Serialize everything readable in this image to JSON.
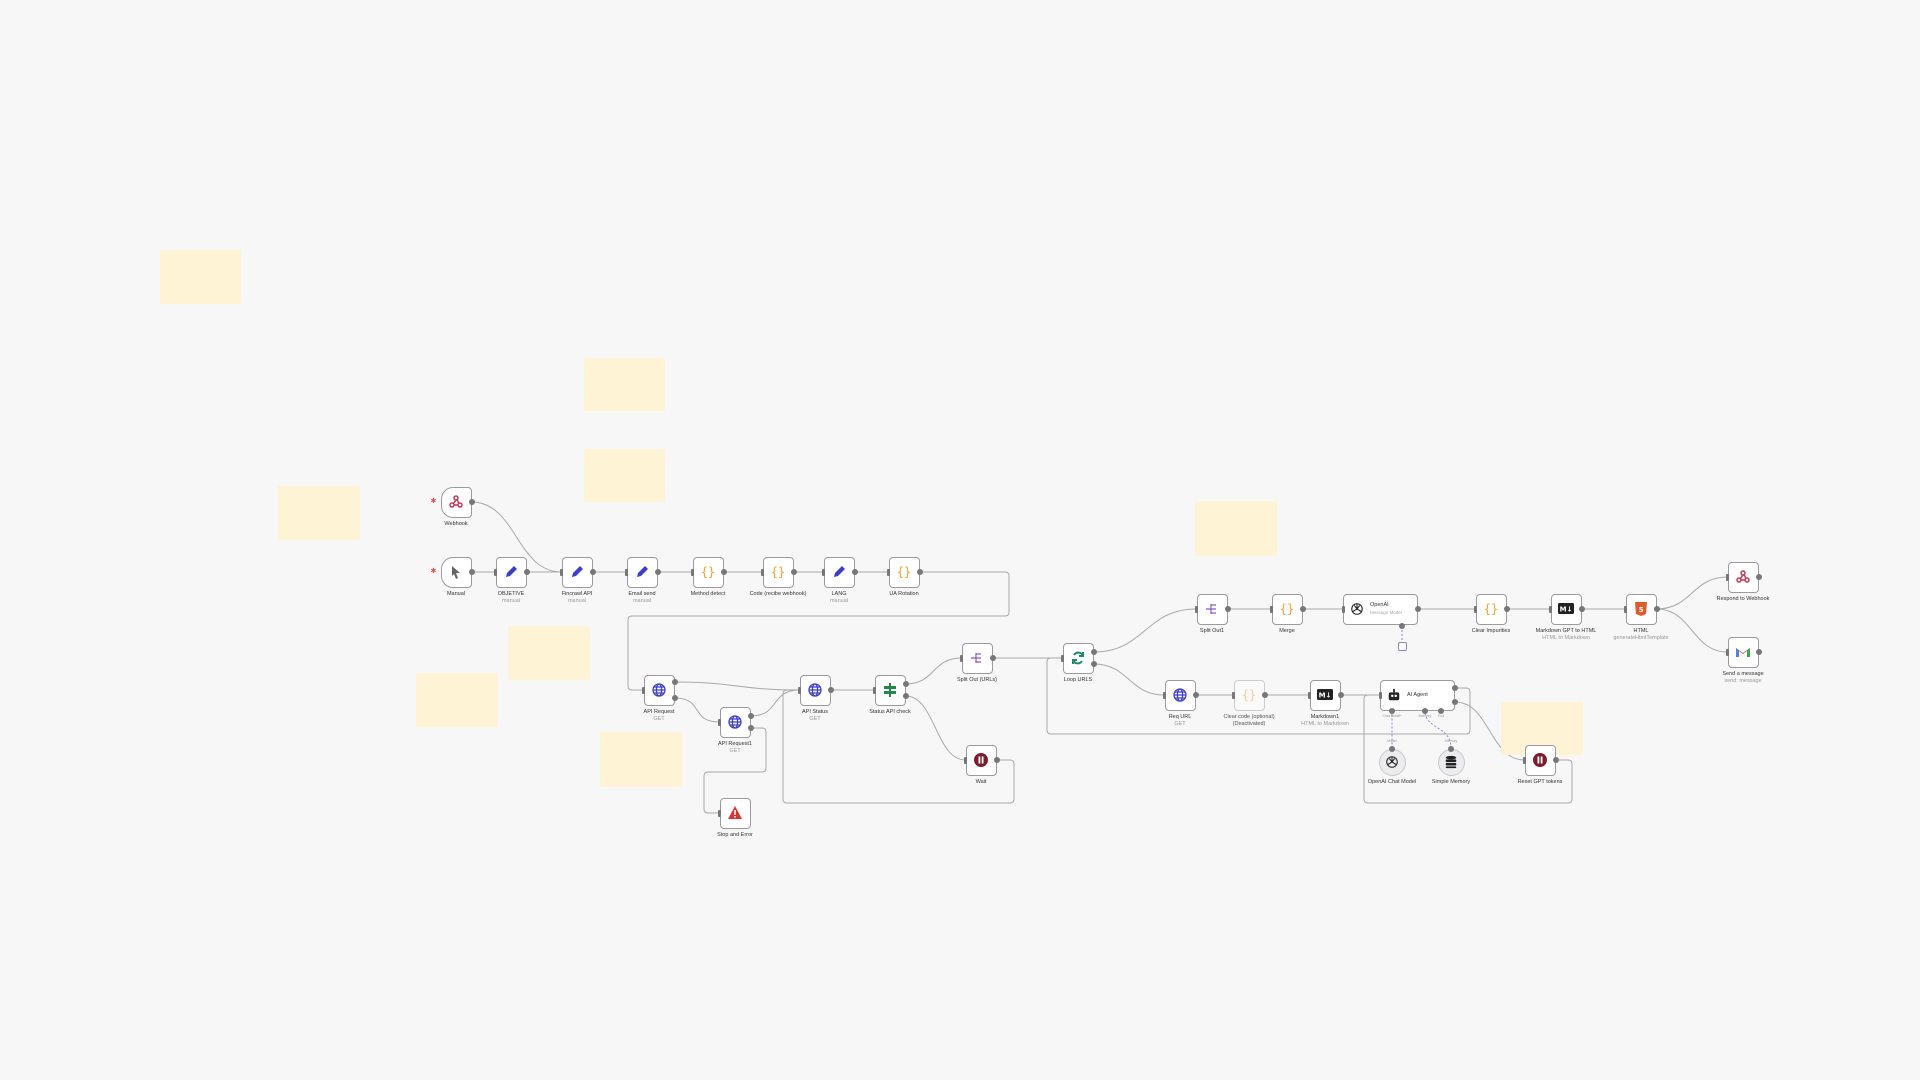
{
  "canvas": {
    "background": "#f7f7f7",
    "sticky_color": "#fef3d4",
    "sticky_count": 9
  },
  "nodes": [
    {
      "id": "webhook",
      "label": "Webhook",
      "icon": "webhook-icon",
      "kind": "trigger"
    },
    {
      "id": "manual",
      "label": "Manual",
      "icon": "cursor-icon",
      "kind": "trigger"
    },
    {
      "id": "objetive",
      "label": "OBJETIVE",
      "sub": "manual",
      "icon": "pencil-icon"
    },
    {
      "id": "fincrawl",
      "label": "Fincrawl API",
      "sub": "manual",
      "icon": "pencil-icon"
    },
    {
      "id": "email",
      "label": "Email send",
      "sub": "manual",
      "icon": "pencil-icon"
    },
    {
      "id": "method",
      "label": "Method detect",
      "icon": "code-braces-icon"
    },
    {
      "id": "code",
      "label": "Code (recibe webhook)",
      "icon": "code-braces-icon"
    },
    {
      "id": "lang",
      "label": "LANG",
      "sub": "manual",
      "icon": "pencil-icon"
    },
    {
      "id": "ua",
      "label": "UA Rotation",
      "icon": "code-braces-icon"
    },
    {
      "id": "apireq",
      "label": "API Request",
      "sub": "GET",
      "icon": "globe-icon"
    },
    {
      "id": "apireq1",
      "label": "API Request1",
      "sub": "GET",
      "icon": "globe-icon"
    },
    {
      "id": "stop",
      "label": "Stop and Error",
      "icon": "warning-icon"
    },
    {
      "id": "apistatus",
      "label": "API Status",
      "sub": "GET",
      "icon": "globe-icon"
    },
    {
      "id": "statuscheck",
      "label": "Status API check",
      "icon": "if-icon"
    },
    {
      "id": "splitout",
      "label": "Split Out (URLs)",
      "icon": "split-icon"
    },
    {
      "id": "wait",
      "label": "Wait",
      "icon": "pause-icon"
    },
    {
      "id": "loop",
      "label": "Loop URLS",
      "icon": "loop-icon"
    },
    {
      "id": "splitout1",
      "label": "Split Out1",
      "icon": "split-icon"
    },
    {
      "id": "merge",
      "label": "Merge",
      "icon": "code-braces-icon"
    },
    {
      "id": "openai",
      "label": "OpenAI",
      "sub": "Message Model",
      "icon": "openai-icon",
      "kind": "wide"
    },
    {
      "id": "clearimp",
      "label": "Clear Impurities",
      "icon": "code-braces-icon"
    },
    {
      "id": "mdgpt",
      "label": "Markdown GPT to HTML",
      "sub": "HTML to Markdown",
      "icon": "markdown-icon"
    },
    {
      "id": "html",
      "label": "HTML",
      "sub": "generateHtmlTemplate",
      "icon": "html5-icon"
    },
    {
      "id": "respond",
      "label": "Respond to Webhook",
      "icon": "webhook-icon"
    },
    {
      "id": "gmail",
      "label": "Send a message",
      "sub": "send: message",
      "icon": "gmail-icon"
    },
    {
      "id": "requrl",
      "label": "Req URL",
      "sub": "GET",
      "icon": "globe-icon"
    },
    {
      "id": "clearcode",
      "label": "Clear code (optional)",
      "sub": "(Deactivated)",
      "icon": "code-braces-icon",
      "kind": "deact"
    },
    {
      "id": "md1",
      "label": "Markdown1",
      "sub": "HTML to Markdown",
      "icon": "markdown-icon"
    },
    {
      "id": "agent",
      "label": "AI Agent",
      "icon": "robot-icon",
      "kind": "wide"
    },
    {
      "id": "chatmodel",
      "label": "OpenAI Chat Model",
      "icon": "openai-icon",
      "kind": "round"
    },
    {
      "id": "memory",
      "label": "Simple Memory",
      "icon": "database-icon",
      "kind": "round"
    },
    {
      "id": "reset",
      "label": "Reset GPT tokens",
      "icon": "pause-icon"
    }
  ],
  "port_labels": {
    "chat_model": "Chat Model*",
    "memory": "Memory",
    "tool": "Tool",
    "model": "Model",
    "memory2": "Memory"
  },
  "connections": [
    [
      "webhook",
      "fincrawl"
    ],
    [
      "manual",
      "objetive"
    ],
    [
      "objetive",
      "fincrawl"
    ],
    [
      "fincrawl",
      "email"
    ],
    [
      "email",
      "method"
    ],
    [
      "method",
      "code"
    ],
    [
      "code",
      "lang"
    ],
    [
      "lang",
      "ua"
    ],
    [
      "ua",
      "apireq"
    ],
    [
      "apireq",
      "apistatus"
    ],
    [
      "apireq",
      "apireq1"
    ],
    [
      "apireq1",
      "apistatus"
    ],
    [
      "apireq1",
      "stop"
    ],
    [
      "apistatus",
      "statuscheck"
    ],
    [
      "statuscheck",
      "splitout"
    ],
    [
      "statuscheck",
      "wait"
    ],
    [
      "wait",
      "apistatus"
    ],
    [
      "splitout",
      "loop"
    ],
    [
      "loop",
      "splitout1"
    ],
    [
      "loop",
      "requrl"
    ],
    [
      "splitout1",
      "merge"
    ],
    [
      "merge",
      "openai"
    ],
    [
      "openai",
      "clearimp"
    ],
    [
      "clearimp",
      "mdgpt"
    ],
    [
      "mdgpt",
      "html"
    ],
    [
      "html",
      "respond"
    ],
    [
      "html",
      "gmail"
    ],
    [
      "requrl",
      "clearcode"
    ],
    [
      "clearcode",
      "md1"
    ],
    [
      "md1",
      "agent"
    ],
    [
      "agent",
      "loop"
    ],
    [
      "agent",
      "reset"
    ],
    [
      "reset",
      "agent"
    ],
    [
      "chatmodel",
      "agent"
    ],
    [
      "memory",
      "agent"
    ]
  ],
  "colors": {
    "pencil": "#3d3dd0",
    "braces": "#f0a229",
    "globe": "#3d3dd0",
    "if": "#1f8a4c",
    "split": "#8b5cc6",
    "pause": "#7a1d2e",
    "error": "#e03131",
    "loop": "#1f8a6a",
    "html5": "#e0592a",
    "webhook": "#c23a5c",
    "edge": "#a8a8ac"
  }
}
